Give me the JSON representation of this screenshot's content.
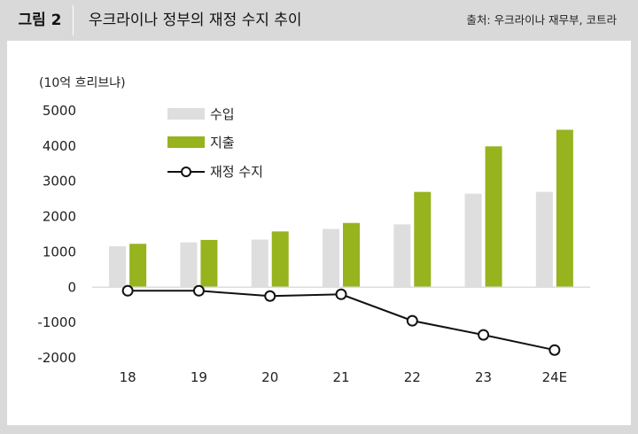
{
  "header": {
    "figure_label": "그림 2",
    "title": "우크라이나 정부의 재정 수지 추이",
    "source": "출처: 우크라이나 재무부, 코트라"
  },
  "colors": {
    "revenue": "#dedede",
    "expenditure": "#97b31d",
    "balance": "#111111"
  },
  "chart_data": {
    "type": "bar",
    "title": "우크라이나 정부의 재정 수지 추이",
    "unit_label": "(10억 흐리브냐)",
    "categories": [
      "18",
      "19",
      "20",
      "21",
      "22",
      "23",
      "24E"
    ],
    "ylim": [
      -2000,
      5000
    ],
    "yticks": [
      5000,
      4000,
      3000,
      2000,
      1000,
      0,
      -1000,
      -2000
    ],
    "grid": false,
    "legend_position": "top-left",
    "series": [
      {
        "name": "수입",
        "kind": "bar",
        "values": [
          1160,
          1270,
          1350,
          1650,
          1780,
          2650,
          2700
        ]
      },
      {
        "name": "지출",
        "kind": "bar",
        "values": [
          1230,
          1340,
          1580,
          1820,
          2700,
          3990,
          4460
        ]
      },
      {
        "name": "재정 수지",
        "kind": "line",
        "values": [
          -100,
          -100,
          -250,
          -200,
          -950,
          -1350,
          -1780
        ]
      }
    ]
  }
}
